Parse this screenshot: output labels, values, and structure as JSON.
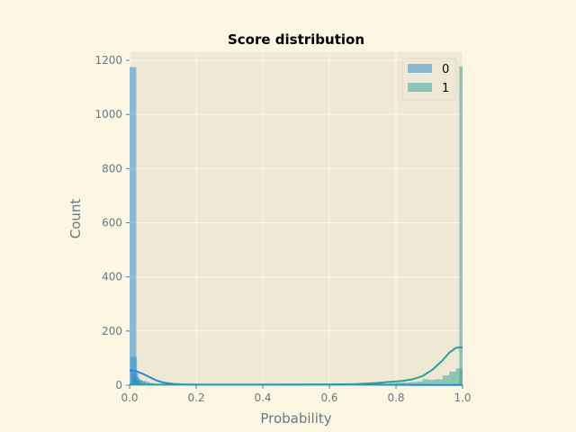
{
  "chart_data": {
    "type": "bar",
    "title": "Score distribution",
    "xlabel": "Probability",
    "ylabel": "Count",
    "xlim": [
      0,
      1
    ],
    "ylim": [
      0,
      1230
    ],
    "xticks": [
      "0.0",
      "0.2",
      "0.4",
      "0.6",
      "0.8",
      "1.0"
    ],
    "yticks": [
      "0",
      "200",
      "400",
      "600",
      "800",
      "1000",
      "1200"
    ],
    "grid": true,
    "legend_position": "top-right",
    "bin_width": 0.02,
    "series": [
      {
        "name": "0",
        "color": "#268bd2",
        "bins": [
          [
            0.0,
            1175
          ],
          [
            0.002,
            105
          ],
          [
            0.006,
            45
          ],
          [
            0.01,
            30
          ],
          [
            0.014,
            22
          ],
          [
            0.02,
            18
          ],
          [
            0.03,
            16
          ],
          [
            0.04,
            12
          ],
          [
            0.05,
            8
          ],
          [
            0.06,
            6
          ],
          [
            0.08,
            4
          ],
          [
            0.1,
            3
          ],
          [
            0.12,
            2
          ],
          [
            0.16,
            2
          ],
          [
            0.2,
            1
          ],
          [
            0.3,
            1
          ],
          [
            0.5,
            1
          ],
          [
            0.7,
            1
          ],
          [
            0.9,
            1
          ],
          [
            0.98,
            2
          ]
        ],
        "kde": [
          [
            0.0,
            55
          ],
          [
            0.02,
            52
          ],
          [
            0.04,
            42
          ],
          [
            0.06,
            30
          ],
          [
            0.08,
            18
          ],
          [
            0.1,
            10
          ],
          [
            0.13,
            5
          ],
          [
            0.16,
            3
          ],
          [
            0.2,
            2
          ],
          [
            0.3,
            2
          ],
          [
            0.5,
            2
          ],
          [
            0.7,
            2
          ],
          [
            0.9,
            1
          ],
          [
            1.0,
            1
          ]
        ]
      },
      {
        "name": "1",
        "color": "#2aa198",
        "bins": [
          [
            0.0,
            8
          ],
          [
            0.02,
            4
          ],
          [
            0.1,
            2
          ],
          [
            0.2,
            1
          ],
          [
            0.3,
            2
          ],
          [
            0.4,
            2
          ],
          [
            0.5,
            3
          ],
          [
            0.54,
            4
          ],
          [
            0.6,
            3
          ],
          [
            0.66,
            4
          ],
          [
            0.7,
            5
          ],
          [
            0.74,
            6
          ],
          [
            0.78,
            8
          ],
          [
            0.8,
            9
          ],
          [
            0.82,
            10
          ],
          [
            0.84,
            12
          ],
          [
            0.86,
            14
          ],
          [
            0.88,
            22
          ],
          [
            0.9,
            20
          ],
          [
            0.92,
            22
          ],
          [
            0.94,
            36
          ],
          [
            0.96,
            50
          ],
          [
            0.98,
            62
          ],
          [
            0.99,
            1178
          ]
        ],
        "kde": [
          [
            0.0,
            2
          ],
          [
            0.2,
            2
          ],
          [
            0.4,
            2
          ],
          [
            0.6,
            3
          ],
          [
            0.68,
            4
          ],
          [
            0.74,
            8
          ],
          [
            0.78,
            12
          ],
          [
            0.82,
            16
          ],
          [
            0.85,
            22
          ],
          [
            0.88,
            34
          ],
          [
            0.91,
            58
          ],
          [
            0.94,
            92
          ],
          [
            0.96,
            120
          ],
          [
            0.98,
            138
          ],
          [
            1.0,
            140
          ]
        ]
      }
    ]
  }
}
